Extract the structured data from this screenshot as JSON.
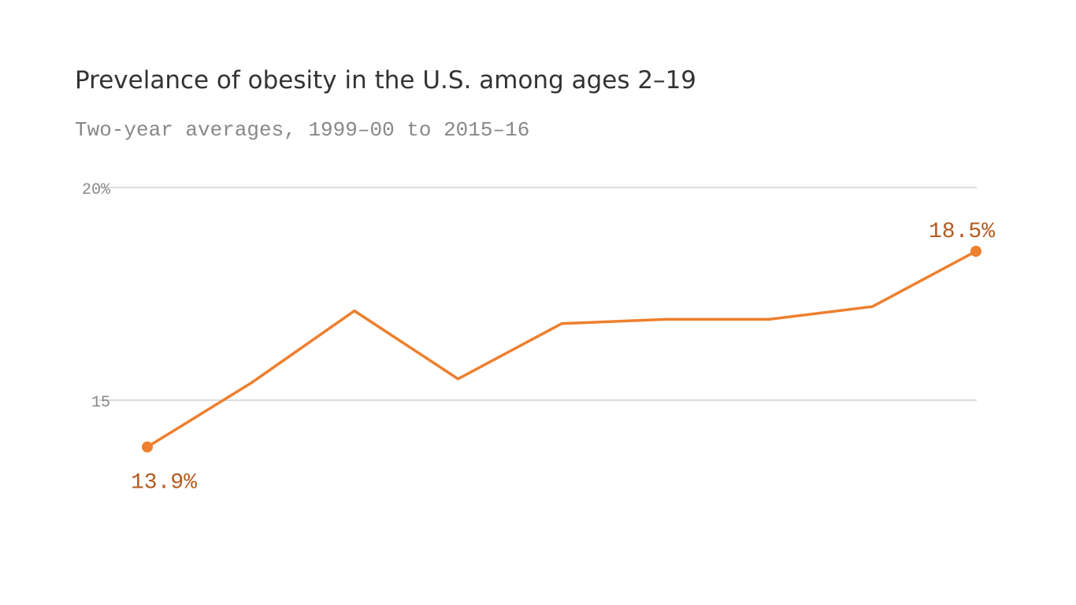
{
  "chart_data": {
    "type": "line",
    "title": "Prevelance of obesity in the U.S. among ages 2–19",
    "subtitle": "Two-year averages, 1999–00 to 2015–16",
    "categories": [
      null,
      null,
      null,
      null,
      null,
      null,
      null,
      null,
      null
    ],
    "values": [
      13.9,
      15.4,
      17.1,
      15.5,
      16.8,
      16.9,
      16.9,
      17.2,
      18.5
    ],
    "value_labels": [
      "13.9%",
      null,
      null,
      null,
      null,
      null,
      null,
      null,
      "18.5%"
    ],
    "color": "#ee7f2d",
    "ylim": [
      12,
      20
    ],
    "yticks": [
      15,
      {
        "value": 20,
        "label": "20%"
      }
    ],
    "grid": true
  }
}
